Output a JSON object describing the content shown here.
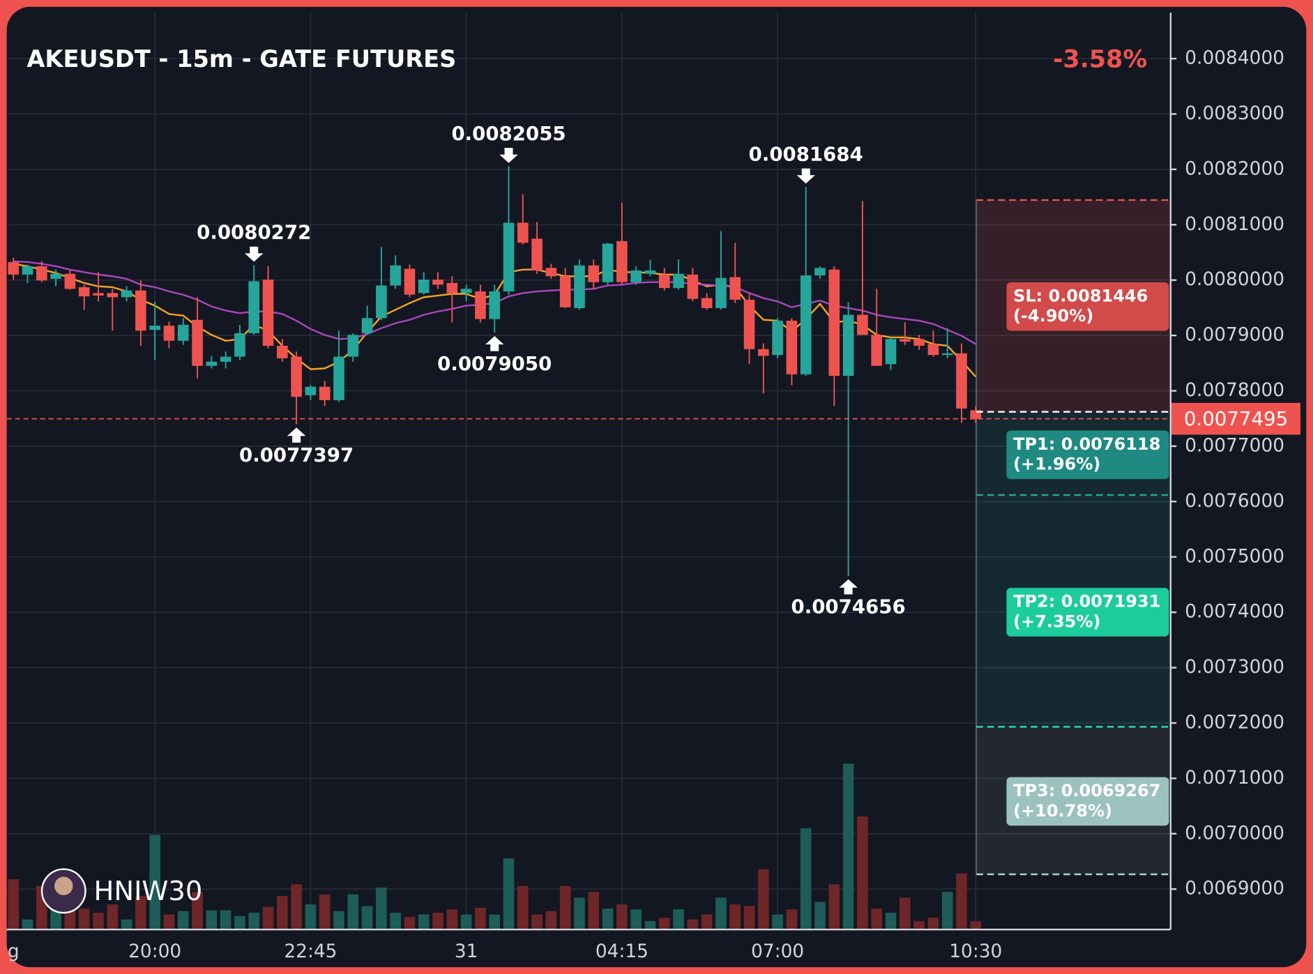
{
  "chart_data": {
    "type": "candlestick",
    "title": "AKEUSDT - 15m - GATE FUTURES",
    "change": "-3.58%",
    "watermark": "HNIW30",
    "categories": [
      "g",
      null,
      null,
      null,
      null,
      null,
      null,
      null,
      null,
      null,
      "20:00",
      null,
      null,
      null,
      null,
      null,
      null,
      null,
      null,
      null,
      null,
      "22:45",
      null,
      null,
      null,
      null,
      null,
      null,
      null,
      null,
      null,
      null,
      "31",
      null,
      null,
      null,
      null,
      null,
      null,
      null,
      null,
      null,
      null,
      "04:15",
      null,
      null,
      null,
      null,
      null,
      null,
      null,
      null,
      null,
      null,
      "07:00",
      null,
      null,
      null,
      null,
      null,
      null,
      null,
      null,
      null,
      null,
      null,
      null,
      null,
      "10:30"
    ],
    "open": [
      0.0080326,
      0.0080099,
      0.008025,
      0.0080023,
      0.0080114,
      0.0079872,
      0.0079766,
      0.0079766,
      0.0079691,
      0.0079812,
      0.0079101,
      0.0079176,
      0.0078904,
      0.0079282,
      0.0078451,
      0.0078526,
      0.0078617,
      0.007904,
      0.0080008,
      0.0078814,
      0.0078617,
      0.0077921,
      0.0078073,
      0.0077831,
      0.0078617,
      0.007904,
      0.0079313,
      0.0079902,
      0.0080205,
      0.0079766,
      0.0080008,
      0.0079948,
      0.0079766,
      0.0079796,
      0.0079297,
      0.0079796,
      0.0081036,
      0.0080749,
      0.008022,
      0.0080069,
      0.0079494,
      0.0080265,
      0.0079963,
      0.0080704,
      0.0079963,
      0.0080114,
      0.0080099,
      0.0079857,
      0.0080099,
      0.0079675,
      0.0079494,
      0.0080053,
      0.0079645,
      0.0078753,
      0.0078647,
      0.0079267,
      0.0078299,
      0.0080084,
      0.0080189,
      0.0078269,
      0.0079373,
      0.007901,
      0.0078481,
      0.0078935,
      0.0078935,
      0.0078844,
      0.0078647,
      0.0078677,
      0.0077649
    ],
    "high": [
      0.0080401,
      0.008028,
      0.0080341,
      0.0080189,
      0.0080189,
      0.0079917,
      0.0080144,
      0.0079842,
      0.0079887,
      0.0079993,
      0.0079615,
      0.0079252,
      0.0079313,
      0.0079691,
      0.0078632,
      0.0078708,
      0.0079192,
      0.0080272,
      0.008025,
      0.0078935,
      0.0078708,
      0.0078103,
      0.0078178,
      0.0079086,
      0.007904,
      0.0079539,
      0.0080598,
      0.0080447,
      0.008028,
      0.0080144,
      0.0080144,
      0.0080069,
      0.0079917,
      0.0079917,
      0.0079917,
      0.0082055,
      0.008155,
      0.0081051,
      0.0080295,
      0.008022,
      0.0080371,
      0.0080371,
      0.0080673,
      0.0081399,
      0.008025,
      0.0080371,
      0.008022,
      0.0080371,
      0.008022,
      0.0079766,
      0.0080885,
      0.0080673,
      0.0079766,
      0.0078859,
      0.0079313,
      0.0079313,
      0.0081684,
      0.008025,
      0.008025,
      0.00796,
      0.0081429,
      0.0079842,
      0.0078965,
      0.0079237,
      0.007901,
      0.0079086,
      0.0079131,
      0.0078859,
      0.0077725
    ],
    "low": [
      0.0080008,
      0.0079948,
      0.0079963,
      0.0079887,
      0.0079827,
      0.0079464,
      0.0079615,
      0.0079086,
      0.0079615,
      0.0078814,
      0.0078556,
      0.0078768,
      0.0078829,
      0.0078224,
      0.0078405,
      0.0078405,
      0.0078556,
      0.007901,
      0.0078768,
      0.0078526,
      0.0077397,
      0.0077831,
      0.0077725,
      0.00778,
      0.0078526,
      0.007901,
      0.0079282,
      0.0079842,
      0.0079691,
      0.0079736,
      0.0079842,
      0.0079237,
      0.0079615,
      0.0079237,
      0.007905,
      0.0079736,
      0.0080643,
      0.0080114,
      0.0080023,
      0.0079494,
      0.0079464,
      0.0079842,
      0.0079917,
      0.0079917,
      0.0079917,
      0.0080069,
      0.0079812,
      0.0079827,
      0.0079615,
      0.0079464,
      0.0079464,
      0.0079585,
      0.0078481,
      0.0077952,
      0.0078587,
      0.0078103,
      0.0078269,
      0.0080023,
      0.0077725,
      0.0074656,
      0.007901,
      0.0078451,
      0.0078375,
      0.0078829,
      0.0078738,
      0.0078617,
      0.0078587,
      0.0077422,
      0.0077422
    ],
    "close": [
      0.0080099,
      0.008025,
      0.0079993,
      0.0080114,
      0.0079842,
      0.0079706,
      0.0079721,
      0.0079691,
      0.0079812,
      0.0079086,
      0.0079176,
      0.0078904,
      0.0079192,
      0.0078451,
      0.0078526,
      0.0078617,
      0.007904,
      0.0079978,
      0.0078814,
      0.0078587,
      0.0077891,
      0.0078073,
      0.0077831,
      0.0078617,
      0.007901,
      0.0079313,
      0.0079902,
      0.0080265,
      0.0079736,
      0.0080008,
      0.0079917,
      0.0079766,
      0.0079842,
      0.0079297,
      0.0079796,
      0.0081036,
      0.0080673,
      0.0080174,
      0.0080069,
      0.0079509,
      0.0080265,
      0.0079963,
      0.0080658,
      0.0079963,
      0.0080174,
      0.0080174,
      0.0079857,
      0.0080114,
      0.007966,
      0.0079494,
      0.0080038,
      0.0079645,
      0.0078753,
      0.0078632,
      0.0079267,
      0.0078299,
      0.0080084,
      0.008022,
      0.0078269,
      0.0079373,
      0.007901,
      0.0078451,
      0.0078935,
      0.0078889,
      0.0078814,
      0.0078647,
      0.0078677,
      0.0077679,
      0.0077495
    ],
    "volume": [
      60,
      12,
      52,
      30,
      45,
      25,
      20,
      30,
      12,
      40,
      113,
      18,
      22,
      45,
      23,
      23,
      16,
      20,
      27,
      40,
      54,
      30,
      42,
      22,
      42,
      28,
      50,
      20,
      15,
      18,
      20,
      24,
      18,
      26,
      18,
      85,
      52,
      18,
      22,
      52,
      38,
      45,
      25,
      30,
      24,
      10,
      14,
      24,
      12,
      18,
      38,
      30,
      28,
      72,
      18,
      24,
      121,
      33,
      54,
      198,
      135,
      25,
      20,
      38,
      10,
      14,
      45,
      67,
      10
    ],
    "up_color": "#26a69a",
    "down_color": "#ef5350",
    "volume_up_color": "#1d5c57",
    "volume_down_color": "#6e2628",
    "series": [
      {
        "color": "#f5a623",
        "values": [
          0.0080295,
          0.008025,
          0.0080189,
          0.0080129,
          0.0080038,
          0.0079948,
          0.0079887,
          0.0079872,
          0.0079796,
          0.0079645,
          0.0079539,
          0.0079388,
          0.0079358,
          0.0079161,
          0.007901,
          0.0078904,
          0.0078935,
          0.0079192,
          0.0079086,
          0.0078814,
          0.0078587,
          0.007839,
          0.0078405,
          0.0078526,
          0.0078738,
          0.0079055,
          0.0079343,
          0.0079464,
          0.0079585,
          0.0079691,
          0.0079721,
          0.0079751,
          0.0079751,
          0.007966,
          0.0079736,
          0.0080144,
          0.0080189,
          0.0080189,
          0.0080129,
          0.0080069,
          0.0080069,
          0.0080069,
          0.0080189,
          0.0080144,
          0.0080144,
          0.0080129,
          0.0080099,
          0.0080099,
          0.0079993,
          0.0079887,
          0.0079917,
          0.0079872,
          0.0079539,
          0.0079282,
          0.0079267,
          0.0079071,
          0.0079297,
          0.007957,
          0.0079237,
          0.0079267,
          0.0079192,
          0.007901,
          0.0078965,
          0.0078965,
          0.0078935,
          0.0078844,
          0.0078814,
          0.0078541,
          0.0078254
        ]
      },
      {
        "color": "#ab47bc",
        "values": [
          0.0080341,
          0.0080326,
          0.0080295,
          0.008025,
          0.0080189,
          0.0080144,
          0.0080099,
          0.0080069,
          0.0080023,
          0.0079917,
          0.0079872,
          0.0079796,
          0.0079736,
          0.0079645,
          0.0079524,
          0.0079449,
          0.0079403,
          0.0079433,
          0.0079433,
          0.0079388,
          0.0079267,
          0.0079116,
          0.007901,
          0.0078935,
          0.007895,
          0.0079025,
          0.0079131,
          0.0079222,
          0.0079282,
          0.0079373,
          0.0079433,
          0.0079479,
          0.0079539,
          0.0079554,
          0.0079585,
          0.0079706,
          0.0079766,
          0.0079796,
          0.0079812,
          0.0079827,
          0.0079827,
          0.0079842,
          0.0079902,
          0.0079917,
          0.0079948,
          0.0079963,
          0.0079963,
          0.0079963,
          0.0079932,
          0.0079917,
          0.0079902,
          0.0079872,
          0.0079766,
          0.0079675,
          0.0079615,
          0.0079509,
          0.007957,
          0.007963,
          0.0079539,
          0.0079494,
          0.0079449,
          0.0079373,
          0.0079328,
          0.0079297,
          0.0079267,
          0.0079207,
          0.0079101,
          0.0078995,
          0.0078844
        ]
      }
    ],
    "annotations": [
      {
        "index": 17,
        "value": 0.0080272,
        "label": "0.0080272",
        "side": "high"
      },
      {
        "index": 20,
        "value": 0.0077397,
        "label": "0.0077397",
        "side": "low"
      },
      {
        "index": 35,
        "value": 0.0082055,
        "label": "0.0082055",
        "side": "high"
      },
      {
        "index": 34,
        "value": 0.007905,
        "label": "0.0079050",
        "side": "low"
      },
      {
        "index": 56,
        "value": 0.0081684,
        "label": "0.0081684",
        "side": "high"
      },
      {
        "index": 59,
        "value": 0.0074656,
        "label": "0.0074656",
        "side": "low"
      }
    ],
    "entry": 0.007762,
    "current": 0.0077495,
    "levels": [
      {
        "label": "SL: 0.0081446",
        "sublabel": "(-4.90%)",
        "value": 0.0081446,
        "color": "#ef5350",
        "box_color": "#d24a4a"
      },
      {
        "label": "TP1: 0.0076118",
        "sublabel": "(+1.96%)",
        "value": 0.0076118,
        "color": "#26a69a",
        "box_color": "#1f8a82"
      },
      {
        "label": "TP2: 0.0071931",
        "sublabel": "(+7.35%)",
        "value": 0.0071931,
        "color": "#2de0b0",
        "box_color": "#1ccc9d"
      },
      {
        "label": "TP3: 0.0069267",
        "sublabel": "(+10.78%)",
        "value": 0.0069267,
        "color": "#a8d6d2",
        "box_color": "#9cc2bf"
      }
    ],
    "ylim": [
      0.006827,
      0.008483
    ],
    "yticks": [
      {
        "value": 0.0069,
        "label": "0.0069000"
      },
      {
        "value": 0.007,
        "label": "0.0070000"
      },
      {
        "value": 0.0071,
        "label": "0.0071000"
      },
      {
        "value": 0.0072,
        "label": "0.0072000"
      },
      {
        "value": 0.0073,
        "label": "0.0073000"
      },
      {
        "value": 0.0074,
        "label": "0.0074000"
      },
      {
        "value": 0.0075,
        "label": "0.0075000"
      },
      {
        "value": 0.0076,
        "label": "0.0076000"
      },
      {
        "value": 0.0077,
        "label": "0.0077000"
      },
      {
        "value": 0.0078,
        "label": "0.0078000"
      },
      {
        "value": 0.0079,
        "label": "0.0079000"
      },
      {
        "value": 0.008,
        "label": "0.0080000"
      },
      {
        "value": 0.0081,
        "label": "0.0081000"
      },
      {
        "value": 0.0082,
        "label": "0.0082000"
      },
      {
        "value": 0.0083,
        "label": "0.0083000"
      },
      {
        "value": 0.0084,
        "label": "0.0084000"
      }
    ],
    "grid": true
  }
}
